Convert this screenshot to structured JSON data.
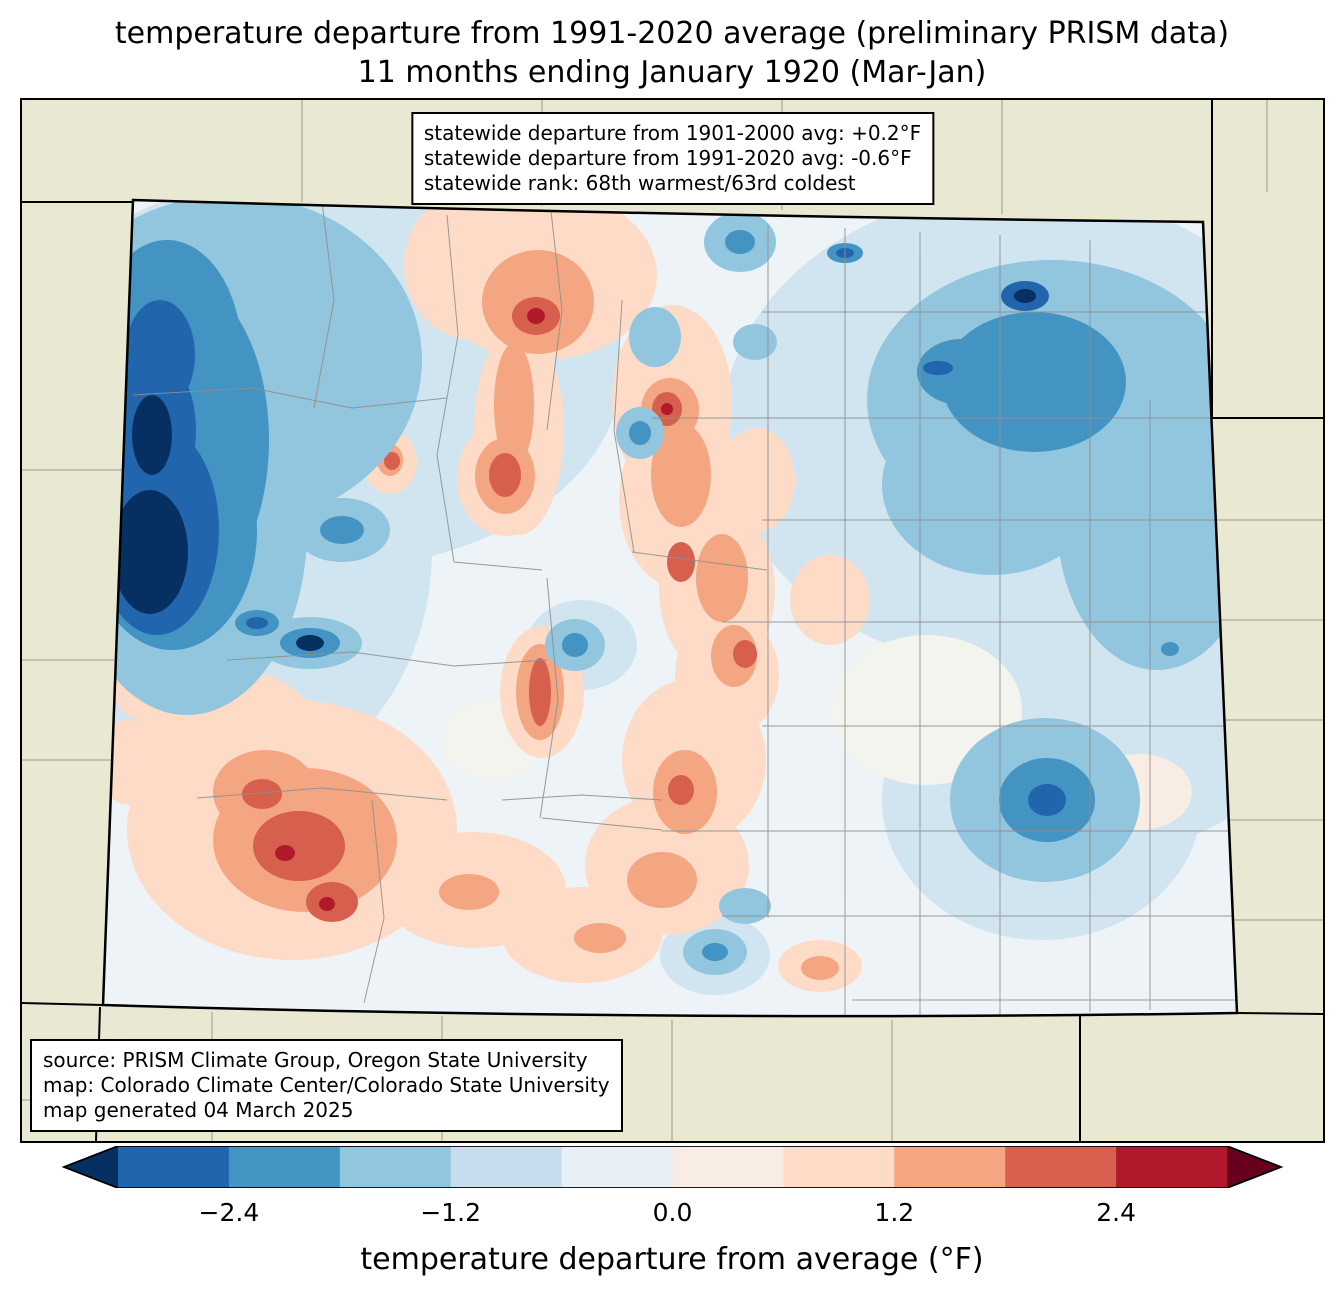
{
  "title": {
    "line1": "temperature departure from 1991-2020 average (preliminary PRISM data)",
    "line2": "11 months ending January 1920 (Mar-Jan)"
  },
  "stats_box": {
    "lines": [
      "statewide departure from 1901-2000 avg: +0.2°F",
      "statewide departure from 1991-2020 avg: -0.6°F",
      "statewide rank: 68th warmest/63rd coldest"
    ]
  },
  "source_box": {
    "lines": [
      "source: PRISM Climate Group, Oregon State University",
      "map: Colorado Climate Center/Colorado State University",
      "map generated 04 March 2025"
    ]
  },
  "colorbar": {
    "label": "temperature departure from average (°F)",
    "tick_labels": [
      "−2.4",
      "−1.2",
      "0.0",
      "1.2",
      "2.4"
    ],
    "tick_values": [
      -2.4,
      -1.2,
      0.0,
      1.2,
      2.4
    ],
    "range": [
      -3.0,
      3.0
    ],
    "segment_colors": [
      "#2166ac",
      "#4393c3",
      "#92c5de",
      "#c7dcec",
      "#e7f0f6",
      "#f9ece4",
      "#fddbc7",
      "#f4a582",
      "#d6604d",
      "#b2182b"
    ],
    "left_arrow_color": "#053061",
    "right_arrow_color": "#67001f"
  },
  "chart_data": {
    "type": "heatmap",
    "title": "temperature departure from 1991-2020 average (preliminary PRISM data)",
    "subtitle": "11 months ending January 1920 (Mar-Jan)",
    "region": "Colorado",
    "variable": "temperature departure from average (°F)",
    "colorbar_range": [
      -3.0,
      3.0
    ],
    "colorbar_ticks": [
      -2.4,
      -1.2,
      0.0,
      1.2,
      2.4
    ],
    "statewide_departure_from_1901_2000_avg_F": 0.2,
    "statewide_departure_from_1991_2020_avg_F": -0.6,
    "statewide_rank": "68th warmest/63rd coldest",
    "legend_position": "bottom",
    "notes": "filled contour map; coldest anomalies (−3°F and below) in northwest Colorado, warm anomalies (+1 to +2°F) along the central mountains and southwest, cool anomalies over the northeast and southeast plains"
  }
}
